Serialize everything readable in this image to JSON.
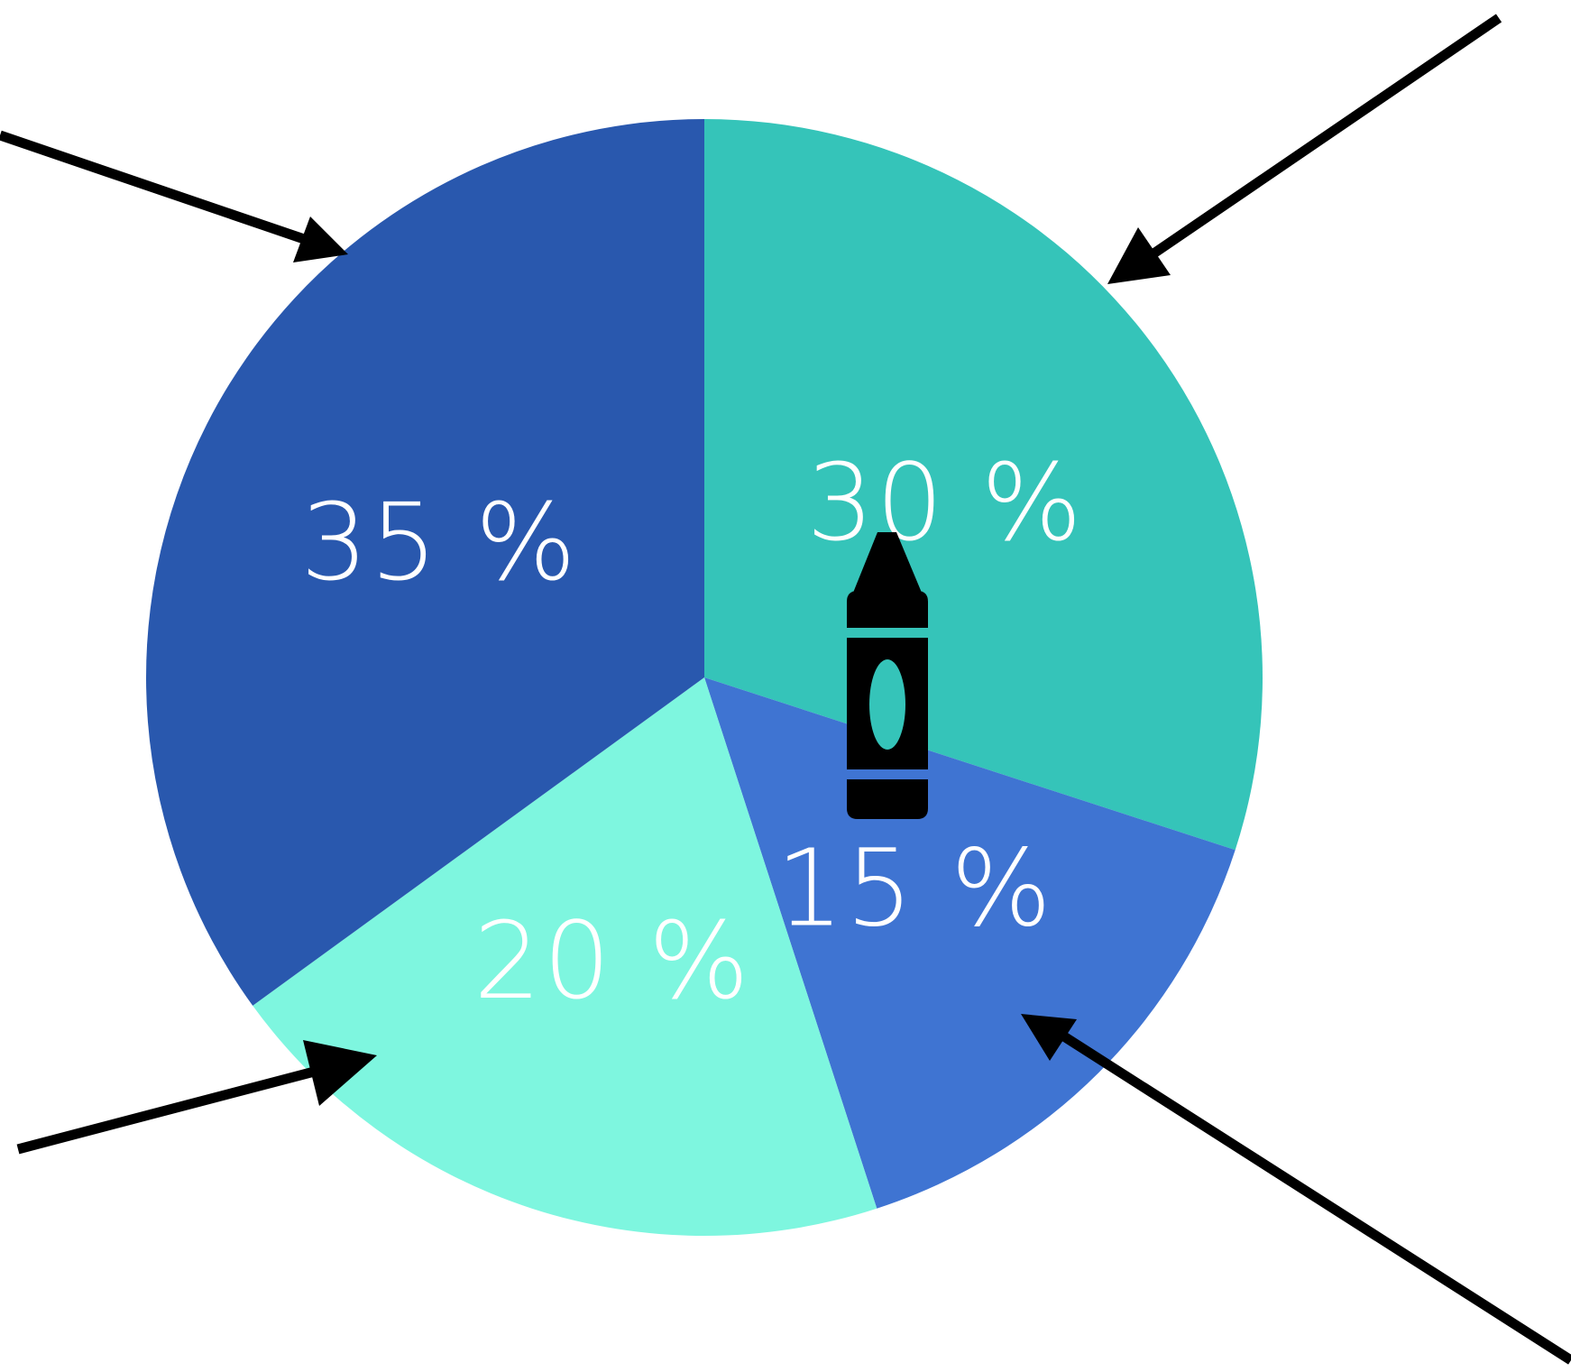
{
  "chart_data": {
    "type": "pie",
    "title": "",
    "start_angle_deg": 90,
    "direction": "clockwise",
    "slices": [
      {
        "label": "30 %",
        "value": 30,
        "color": "#35c4b9"
      },
      {
        "label": "15 %",
        "value": 15,
        "color": "#3f74d2"
      },
      {
        "label": "20 %",
        "value": 20,
        "color": "#7ef6df"
      },
      {
        "label": "35 %",
        "value": 35,
        "color": "#2958ae"
      }
    ],
    "arrow_color": "#000000",
    "legend": "none",
    "center_icon": "crayon-icon"
  }
}
